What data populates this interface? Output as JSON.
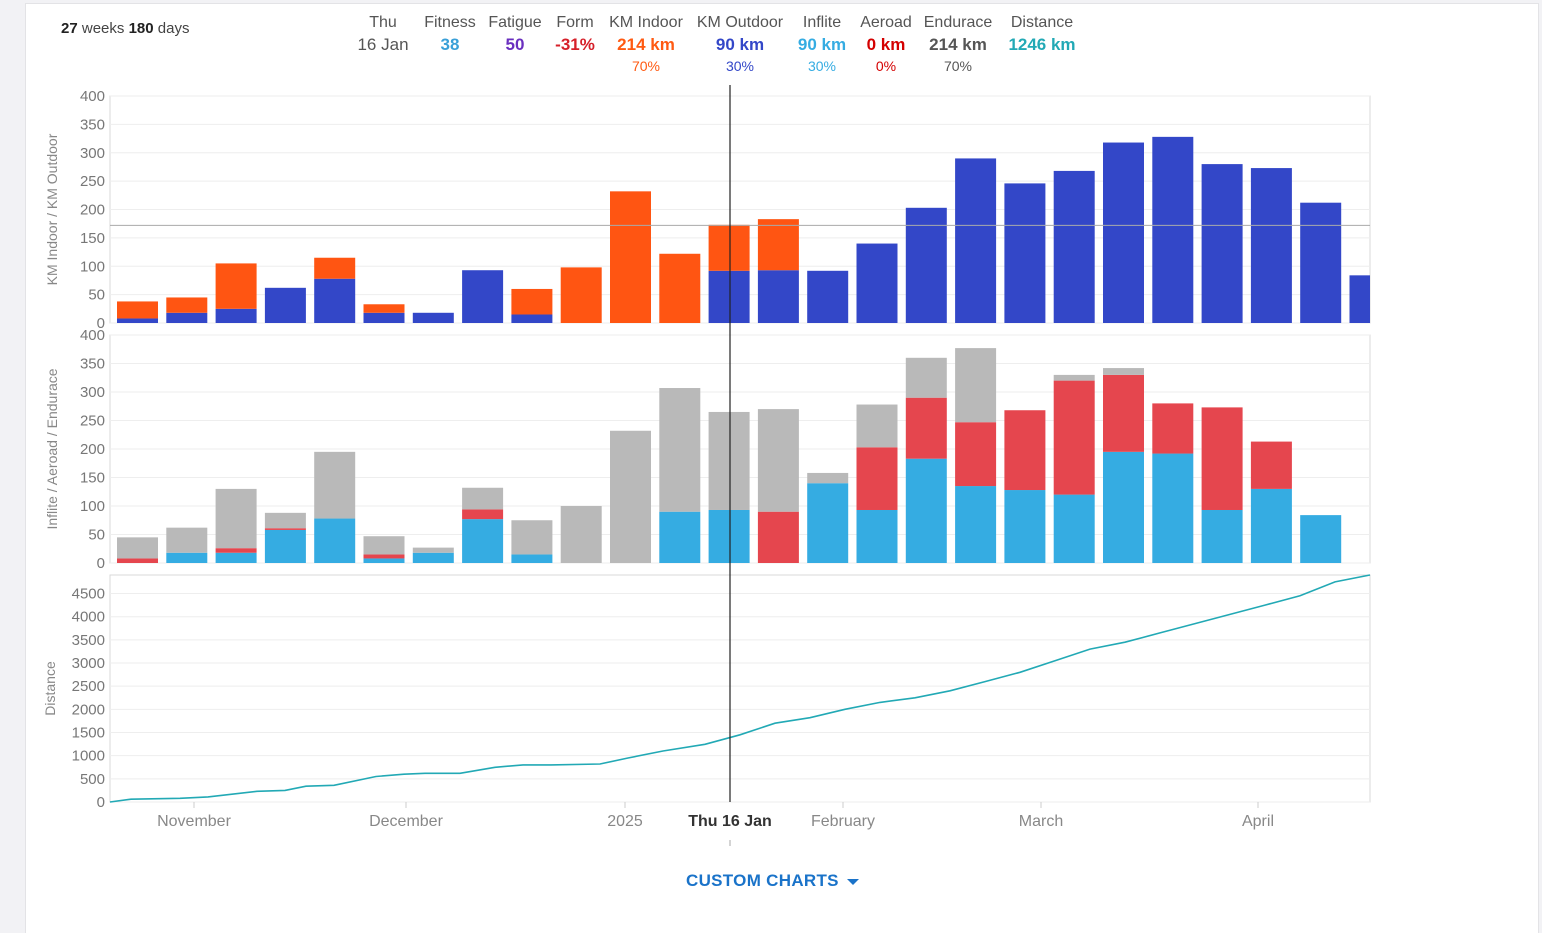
{
  "summary": {
    "weeks": "27",
    "weeks_label": "weeks",
    "days": "180",
    "days_label": "days"
  },
  "header": [
    {
      "label": "Thu",
      "value": "16 Jan",
      "pct": "",
      "color": "#555555"
    },
    {
      "label": "Fitness",
      "value": "38",
      "pct": "",
      "color": "#3aa0d8"
    },
    {
      "label": "Fatigue",
      "value": "50",
      "pct": "",
      "color": "#6a2fbf"
    },
    {
      "label": "Form",
      "value": "-31%",
      "pct": "",
      "color": "#d6202a"
    },
    {
      "label": "KM Indoor",
      "value": "214 km",
      "pct": "70%",
      "color": "#ff5a12"
    },
    {
      "label": "KM Outdoor",
      "value": "90 km",
      "pct": "30%",
      "color": "#3347c8"
    },
    {
      "label": "Inflite",
      "value": "90 km",
      "pct": "30%",
      "color": "#35ace2"
    },
    {
      "label": "Aeroad",
      "value": "0 km",
      "pct": "0%",
      "color": "#d40000"
    },
    {
      "label": "Endurace",
      "value": "214 km",
      "pct": "70%",
      "color": "#555555"
    },
    {
      "label": "Distance",
      "value": "1246 km",
      "pct": "",
      "color": "#22a9b5"
    }
  ],
  "custom_charts_label": "CUSTOM CHARTS",
  "chart_data": {
    "type": "bar",
    "x_tick_labels": [
      "November",
      "December",
      "2025",
      "Thu 16 Jan",
      "February",
      "March",
      "April"
    ],
    "cursor_label": "Thu 16 Jan",
    "panels": [
      {
        "ylabel": "KM Indoor / KM Outdoor",
        "ylim": [
          0,
          400
        ],
        "yticks": [
          0,
          50,
          100,
          150,
          200,
          250,
          300,
          350,
          400
        ],
        "reference_line": 172,
        "stacked": true,
        "series": [
          {
            "name": "KM Outdoor",
            "color": "#3347c8",
            "values": [
              8,
              18,
              25,
              62,
              78,
              18,
              18,
              93,
              15,
              0,
              0,
              0,
              92,
              93,
              92,
              140,
              203,
              290,
              246,
              268,
              318,
              328,
              280,
              273,
              212,
              84
            ]
          },
          {
            "name": "KM Indoor",
            "color": "#ff5512",
            "values": [
              30,
              27,
              80,
              0,
              37,
              15,
              0,
              0,
              45,
              98,
              232,
              122,
              81,
              90,
              0,
              0,
              0,
              0,
              0,
              0,
              0,
              0,
              0,
              0,
              0,
              0
            ]
          }
        ]
      },
      {
        "ylabel": "Inflite / Aeroad / Endurace",
        "ylim": [
          0,
          400
        ],
        "yticks": [
          0,
          50,
          100,
          150,
          200,
          250,
          300,
          350,
          400
        ],
        "stacked": true,
        "series": [
          {
            "name": "Inflite",
            "color": "#35ace2",
            "values": [
              0,
              18,
              18,
              58,
              78,
              8,
              18,
              77,
              15,
              0,
              0,
              90,
              93,
              0,
              140,
              93,
              183,
              135,
              128,
              120,
              195,
              192,
              93,
              130,
              84,
              0
            ]
          },
          {
            "name": "Aeroad",
            "color": "#e5464e",
            "values": [
              8,
              0,
              8,
              3,
              0,
              7,
              0,
              17,
              0,
              0,
              0,
              0,
              0,
              90,
              0,
              110,
              107,
              112,
              140,
              200,
              135,
              88,
              180,
              83,
              0,
              0
            ]
          },
          {
            "name": "Endurace",
            "color": "#b9b9b9",
            "values": [
              37,
              44,
              104,
              27,
              117,
              32,
              9,
              38,
              60,
              100,
              232,
              217,
              172,
              180,
              18,
              75,
              70,
              130,
              0,
              10,
              12,
              0,
              0,
              0,
              0,
              0
            ]
          }
        ]
      },
      {
        "ylabel": "Distance",
        "type": "line",
        "ylim": [
          0,
          4900
        ],
        "yticks": [
          0,
          500,
          1000,
          1500,
          2000,
          2500,
          3000,
          3500,
          4000,
          4500
        ],
        "color": "#22a9b5",
        "x_days": [
          0,
          3,
          10,
          14,
          21,
          25,
          28,
          32,
          38,
          42,
          45,
          50,
          55,
          59,
          63,
          70,
          74,
          79,
          85,
          90,
          95,
          100,
          105,
          110,
          115,
          120,
          125,
          130,
          135,
          140,
          145,
          150,
          155,
          160,
          165,
          170,
          175,
          180
        ],
        "values": [
          0,
          60,
          80,
          110,
          230,
          250,
          340,
          360,
          550,
          600,
          620,
          620,
          750,
          800,
          800,
          820,
          950,
          1100,
          1246,
          1450,
          1700,
          1820,
          2000,
          2150,
          2250,
          2400,
          2600,
          2800,
          3050,
          3300,
          3450,
          3650,
          3850,
          4050,
          4250,
          4450,
          4750,
          4900
        ]
      }
    ]
  }
}
